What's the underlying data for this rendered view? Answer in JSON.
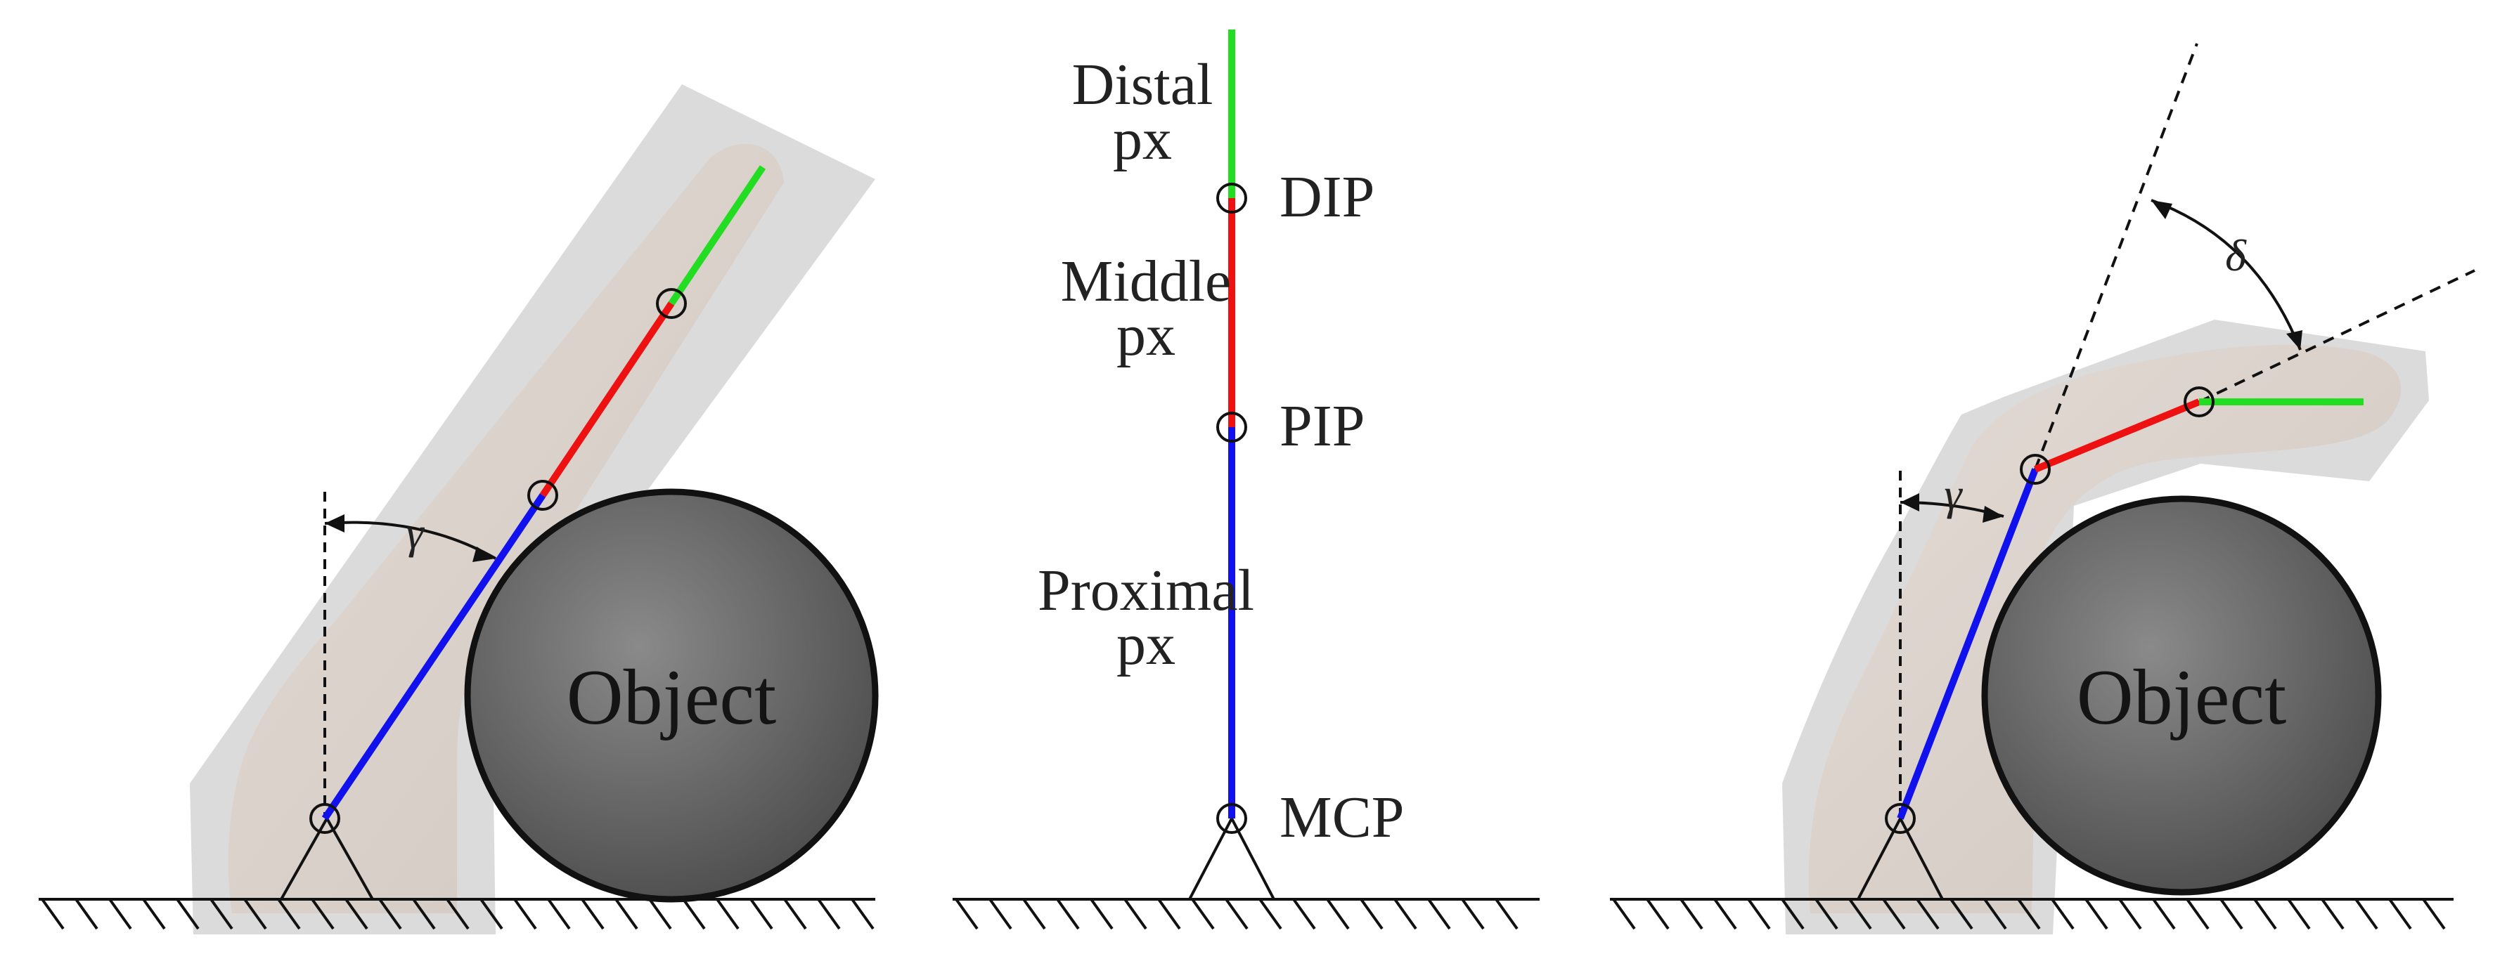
{
  "panels": {
    "left": {
      "object_label": "Object",
      "angle_label": "γ"
    },
    "middle": {
      "segment_labels": {
        "distal": [
          "Distal",
          "px"
        ],
        "middle": [
          "Middle",
          "px"
        ],
        "proximal": [
          "Proximal",
          "px"
        ]
      },
      "joint_labels": {
        "dip": "DIP",
        "pip": "PIP",
        "mcp": "MCP"
      }
    },
    "right": {
      "object_label": "Object",
      "angle_gamma_label": "γ",
      "angle_delta_label": "δ"
    }
  },
  "colors": {
    "distal": "#22dd22",
    "middle": "#ee1111",
    "proximal": "#1111ee",
    "object_fill": "#6f6f6f",
    "finger_fill": "#d6cdc6",
    "finger_border": "#a8a8a8"
  }
}
